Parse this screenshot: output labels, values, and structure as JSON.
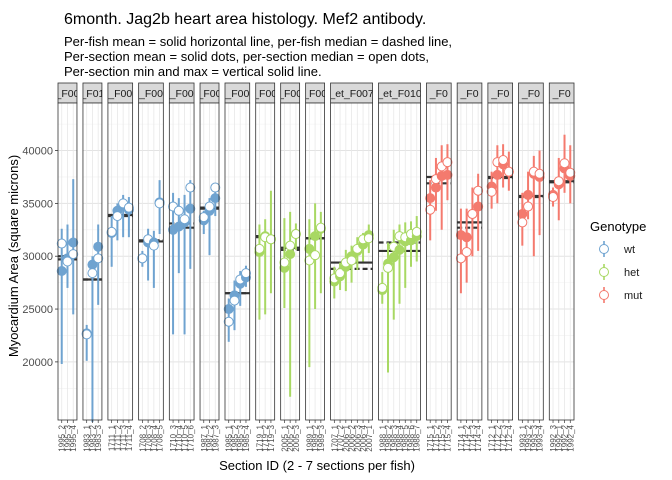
{
  "chart_data": {
    "type": "scatter",
    "title": "6month. Jag2b heart area histology. Mef2 antibody.",
    "subtitle": [
      "Per-fish mean = solid horizontal line, per-fish median = dashed line,",
      "Per-section mean = solid dots, per-section median = open dots,",
      "Per-section min and max = vertical solid line."
    ],
    "xlabel": "Section ID (2 - 7 sections per fish)",
    "ylabel": "Myocardium Area (square microns)",
    "ylim": [
      14500,
      44500
    ],
    "yticks": [
      20000,
      25000,
      30000,
      35000,
      40000
    ],
    "grid": true,
    "legend": {
      "title": "Genotype",
      "position": "right",
      "entries": [
        {
          "label": "wt",
          "color": "#6fa3d0"
        },
        {
          "label": "het",
          "color": "#a8d863"
        },
        {
          "label": "mut",
          "color": "#f47a6e"
        }
      ]
    },
    "panels": [
      {
        "strip": "F00",
        "genotype": "wt",
        "fish_mean": 30000,
        "fish_median": 29700,
        "sections": [
          {
            "id": "1995_2",
            "mean": 28600,
            "median": 31200,
            "min": 19800,
            "max": 32600
          },
          {
            "id": "1995_3",
            "mean": 29800,
            "median": 29500,
            "min": 27000,
            "max": 33000
          },
          {
            "id": "1995_4",
            "mean": 31300,
            "median": 30200,
            "min": 24500,
            "max": 37300
          }
        ]
      },
      {
        "strip": "F01",
        "genotype": "wt",
        "fish_mean": 27800,
        "fish_median": 27800,
        "sections": [
          {
            "id": "1983_1",
            "mean": 22700,
            "median": 22600,
            "min": 20100,
            "max": 23500
          },
          {
            "id": "1983_2",
            "mean": 29200,
            "median": 28400,
            "min": 14300,
            "max": 30000
          },
          {
            "id": "1983_3",
            "mean": 30900,
            "median": 29800,
            "min": 25400,
            "max": 33000
          }
        ]
      },
      {
        "strip": "F00",
        "genotype": "wt",
        "fish_mean": 33900,
        "fish_median": 33800,
        "sections": [
          {
            "id": "1711_1",
            "mean": 32200,
            "median": 32300,
            "min": 29000,
            "max": 33800
          },
          {
            "id": "1711_2",
            "mean": 34300,
            "median": 33800,
            "min": 31500,
            "max": 35000
          },
          {
            "id": "1711_3",
            "mean": 34800,
            "median": 35000,
            "min": 31800,
            "max": 35800
          },
          {
            "id": "1711_4",
            "mean": 34400,
            "median": 34600,
            "min": 31800,
            "max": 35600
          }
        ]
      },
      {
        "strip": "F00",
        "genotype": "wt",
        "fish_mean": 31400,
        "fish_median": 31500,
        "sections": [
          {
            "id": "1708_2",
            "mean": 29800,
            "median": 29800,
            "min": 29000,
            "max": 30500
          },
          {
            "id": "1708_3",
            "mean": 31300,
            "median": 31600,
            "min": 27700,
            "max": 32600
          },
          {
            "id": "1708_4",
            "mean": 31300,
            "median": 31000,
            "min": 27000,
            "max": 32400
          },
          {
            "id": "1708_5",
            "mean": 35100,
            "median": 35000,
            "min": 32100,
            "max": 37200
          }
        ]
      },
      {
        "strip": "F00",
        "genotype": "wt",
        "fish_mean": 32700,
        "fish_median": 33100,
        "sections": [
          {
            "id": "1710_3",
            "mean": 32500,
            "median": 34700,
            "min": 22600,
            "max": 36000
          },
          {
            "id": "1710_4",
            "mean": 32800,
            "median": 34300,
            "min": 28400,
            "max": 35500
          },
          {
            "id": "1710_5",
            "mean": 33200,
            "median": 33500,
            "min": 22600,
            "max": 35800
          },
          {
            "id": "1710_6",
            "mean": 34500,
            "median": 36500,
            "min": 28800,
            "max": 37200
          }
        ]
      },
      {
        "strip": "F00",
        "genotype": "wt",
        "fish_mean": 34500,
        "fish_median": 34600,
        "sections": [
          {
            "id": "1987_1",
            "mean": 33400,
            "median": 33700,
            "min": 32100,
            "max": 34300
          },
          {
            "id": "1987_2",
            "mean": 34300,
            "median": 34700,
            "min": 30100,
            "max": 35500
          },
          {
            "id": "1987_3",
            "mean": 35500,
            "median": 36500,
            "min": 33800,
            "max": 36800
          }
        ]
      },
      {
        "strip": "F00",
        "genotype": "wt",
        "fish_mean": 26500,
        "fish_median": 26500,
        "sections": [
          {
            "id": "1985_1",
            "mean": 25000,
            "median": 23800,
            "min": 21900,
            "max": 26000
          },
          {
            "id": "1985_2",
            "mean": 26300,
            "median": 25800,
            "min": 23000,
            "max": 27700
          },
          {
            "id": "1985_3",
            "mean": 27400,
            "median": 27800,
            "min": 25300,
            "max": 28600
          },
          {
            "id": "1985_4",
            "mean": 28000,
            "median": 28400,
            "min": 27100,
            "max": 29100
          }
        ]
      },
      {
        "strip": "F00",
        "genotype": "het",
        "fish_mean": 31900,
        "fish_median": 31800,
        "sections": [
          {
            "id": "1719_1",
            "mean": 30400,
            "median": 30700,
            "min": 24000,
            "max": 33000
          },
          {
            "id": "1719_2",
            "mean": 31900,
            "median": 31800,
            "min": 24500,
            "max": 33500
          },
          {
            "id": "1719_3",
            "mean": 31600,
            "median": 31600,
            "min": 26500,
            "max": 36200
          }
        ]
      },
      {
        "strip": "F00",
        "genotype": "het",
        "fish_mean": 30800,
        "fish_median": 30600,
        "sections": [
          {
            "id": "2005_1",
            "mean": 28900,
            "median": 29400,
            "min": 25100,
            "max": 33600
          },
          {
            "id": "2005_2",
            "mean": 30200,
            "median": 31000,
            "min": 16700,
            "max": 34200
          },
          {
            "id": "2005_3",
            "mean": 32100,
            "median": 32100,
            "min": 30600,
            "max": 33100
          }
        ]
      },
      {
        "strip": "F00",
        "genotype": "het",
        "fish_mean": 31700,
        "fish_median": 31700,
        "sections": [
          {
            "id": "1989_1",
            "mean": 30700,
            "median": 29600,
            "min": 19500,
            "max": 33500
          },
          {
            "id": "1989_2",
            "mean": 31900,
            "median": 30100,
            "min": 25000,
            "max": 35000
          },
          {
            "id": "1989_3",
            "mean": 32600,
            "median": 32700,
            "min": 26500,
            "max": 34200
          }
        ]
      },
      {
        "strip": "et_F007",
        "genotype": "het",
        "fish_mean": 29400,
        "fish_median": 28800,
        "sections": [
          {
            "id": "1707_1",
            "mean": 27600,
            "median": 27900,
            "min": 26000,
            "max": 29000
          },
          {
            "id": "1707_2",
            "mean": 28100,
            "median": 28400,
            "min": 26800,
            "max": 29400
          },
          {
            "id": "2006_1",
            "mean": 29000,
            "median": 29400,
            "min": 26700,
            "max": 30600
          },
          {
            "id": "2006_2",
            "mean": 30000,
            "median": 29600,
            "min": 27500,
            "max": 31000
          },
          {
            "id": "2006_3",
            "mean": 30500,
            "median": 30700,
            "min": 28700,
            "max": 31800
          },
          {
            "id": "2006_4",
            "mean": 31100,
            "median": 31600,
            "min": 29500,
            "max": 32200
          },
          {
            "id": "2007_1",
            "mean": 32000,
            "median": 31700,
            "min": 30300,
            "max": 33000
          }
        ]
      },
      {
        "strip": "et_F010",
        "genotype": "het",
        "fish_mean": 30500,
        "fish_median": 31300,
        "sections": [
          {
            "id": "1988_1",
            "mean": 26800,
            "median": 27000,
            "min": 25500,
            "max": 28500
          },
          {
            "id": "1988_2",
            "mean": 29300,
            "median": 28900,
            "min": 19000,
            "max": 31300
          },
          {
            "id": "1988_3",
            "mean": 29900,
            "median": 30900,
            "min": 24000,
            "max": 32500
          },
          {
            "id": "1988_4",
            "mean": 30600,
            "median": 31900,
            "min": 25500,
            "max": 33000
          },
          {
            "id": "1988_5",
            "mean": 31400,
            "median": 31800,
            "min": 27000,
            "max": 33200
          },
          {
            "id": "1988_6",
            "mean": 31500,
            "median": 32100,
            "min": 29000,
            "max": 33300
          },
          {
            "id": "1988_7",
            "mean": 31900,
            "median": 32300,
            "min": 29500,
            "max": 33800
          }
        ]
      },
      {
        "strip": "F0",
        "genotype": "mut",
        "fish_mean": 37500,
        "fish_median": 36900,
        "sections": [
          {
            "id": "1715_1",
            "mean": 35500,
            "median": 34400,
            "min": 31500,
            "max": 37200
          },
          {
            "id": "1715_2",
            "mean": 36500,
            "median": 37300,
            "min": 34300,
            "max": 39300
          },
          {
            "id": "1715_3",
            "mean": 37600,
            "median": 38500,
            "min": 32500,
            "max": 40500
          },
          {
            "id": "1715_4",
            "mean": 37700,
            "median": 38900,
            "min": 35300,
            "max": 40600
          }
        ]
      },
      {
        "strip": "F0",
        "genotype": "mut",
        "fish_mean": 33200,
        "fish_median": 32700,
        "sections": [
          {
            "id": "1714_1",
            "mean": 32000,
            "median": 29800,
            "min": 26500,
            "max": 34500
          },
          {
            "id": "1714_2",
            "mean": 31800,
            "median": 30400,
            "min": 27500,
            "max": 34500
          },
          {
            "id": "1714_3",
            "mean": 34000,
            "median": 34000,
            "min": 30000,
            "max": 36500
          },
          {
            "id": "1714_4",
            "mean": 34700,
            "median": 36200,
            "min": 30500,
            "max": 37800
          }
        ]
      },
      {
        "strip": "F0",
        "genotype": "mut",
        "fish_mean": 37500,
        "fish_median": 37400,
        "sections": [
          {
            "id": "1712_1",
            "mean": 36600,
            "median": 36100,
            "min": 34500,
            "max": 38000
          },
          {
            "id": "1712_2",
            "mean": 37700,
            "median": 38900,
            "min": 35000,
            "max": 40500
          },
          {
            "id": "1712_3",
            "mean": 38700,
            "median": 39100,
            "min": 36500,
            "max": 40600
          },
          {
            "id": "1712_4",
            "mean": 38000,
            "median": 38000,
            "min": 36200,
            "max": 39900
          }
        ]
      },
      {
        "strip": "F0",
        "genotype": "mut",
        "fish_mean": 35700,
        "fish_median": 35600,
        "sections": [
          {
            "id": "1993_1",
            "mean": 34000,
            "median": 33200,
            "min": 31000,
            "max": 36000
          },
          {
            "id": "1993_2",
            "mean": 35800,
            "median": 34700,
            "min": 33500,
            "max": 38000
          },
          {
            "id": "1993_3",
            "mean": 37800,
            "median": 38000,
            "min": 30000,
            "max": 39500
          },
          {
            "id": "1993_4",
            "mean": 37500,
            "median": 37800,
            "min": 32000,
            "max": 40000
          }
        ]
      },
      {
        "strip": "F0",
        "genotype": "mut",
        "fish_mean": 37100,
        "fish_median": 37000,
        "sections": [
          {
            "id": "1992_3",
            "mean": 35800,
            "median": 35600,
            "min": 34700,
            "max": 36500
          },
          {
            "id": "1992_1",
            "mean": 36800,
            "median": 37100,
            "min": 33400,
            "max": 39300
          },
          {
            "id": "1992_2",
            "mean": 38300,
            "median": 38800,
            "min": 36000,
            "max": 41500
          },
          {
            "id": "1992_4",
            "mean": 37600,
            "median": 37900,
            "min": 35000,
            "max": 40500
          }
        ]
      }
    ]
  }
}
